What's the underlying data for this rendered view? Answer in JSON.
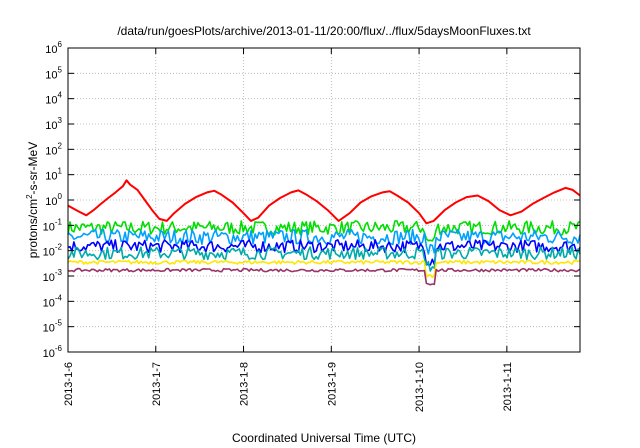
{
  "chart_data": {
    "type": "line",
    "title": "/data/run/goesPlots/archive/2013-01-11/20:00/flux/../flux/5daysMoonFluxes.txt",
    "xlabel": "Coordinated Universal Time (UTC)",
    "ylabel": {
      "base": "protons/cm",
      "sup": "2",
      "rest": "-s-sr-MeV"
    },
    "y_scale": "log",
    "ylim": [
      1e-06,
      1000000.0
    ],
    "y_ticks": [
      {
        "value": 1e-06,
        "base": "10",
        "exp": "-6"
      },
      {
        "value": 1e-05,
        "base": "10",
        "exp": "-5"
      },
      {
        "value": 0.0001,
        "base": "10",
        "exp": "-4"
      },
      {
        "value": 0.001,
        "base": "10",
        "exp": "-3"
      },
      {
        "value": 0.01,
        "base": "10",
        "exp": "-2"
      },
      {
        "value": 0.1,
        "base": "10",
        "exp": "-1"
      },
      {
        "value": 1.0,
        "base": "10",
        "exp": "0"
      },
      {
        "value": 10.0,
        "base": "10",
        "exp": "1"
      },
      {
        "value": 100.0,
        "base": "10",
        "exp": "2"
      },
      {
        "value": 1000.0,
        "base": "10",
        "exp": "3"
      },
      {
        "value": 10000.0,
        "base": "10",
        "exp": "4"
      },
      {
        "value": 100000.0,
        "base": "10",
        "exp": "5"
      },
      {
        "value": 1000000.0,
        "base": "10",
        "exp": "6"
      }
    ],
    "xlim": [
      "2013-01-06T00:00",
      "2013-01-11T20:00"
    ],
    "x_ticks": [
      "2013-1-6",
      "2013-1-7",
      "2013-1-8",
      "2013-1-9",
      "2013-1-10",
      "2013-1-11"
    ],
    "grid": true,
    "legend": "none",
    "series": [
      {
        "color": "#ff0000",
        "points": [
          [
            "2013-01-06T00:00",
            0.6
          ],
          [
            "2013-01-06T03:00",
            0.35
          ],
          [
            "2013-01-06T05:00",
            0.25
          ],
          [
            "2013-01-06T07:00",
            0.4
          ],
          [
            "2013-01-06T09:00",
            0.7
          ],
          [
            "2013-01-06T11:00",
            1.2
          ],
          [
            "2013-01-06T13:00",
            2.0
          ],
          [
            "2013-01-06T15:00",
            3.5
          ],
          [
            "2013-01-06T16:00",
            6.0
          ],
          [
            "2013-01-06T17:00",
            4.0
          ],
          [
            "2013-01-06T19:00",
            2.5
          ],
          [
            "2013-01-06T21:00",
            1.0
          ],
          [
            "2013-01-06T23:00",
            0.4
          ],
          [
            "2013-01-07T01:00",
            0.18
          ],
          [
            "2013-01-07T03:00",
            0.15
          ],
          [
            "2013-01-07T05:00",
            0.3
          ],
          [
            "2013-01-07T08:00",
            0.7
          ],
          [
            "2013-01-07T11:00",
            1.3
          ],
          [
            "2013-01-07T14:00",
            2.0
          ],
          [
            "2013-01-07T16:00",
            2.3
          ],
          [
            "2013-01-07T18:00",
            1.6
          ],
          [
            "2013-01-07T21:00",
            0.8
          ],
          [
            "2013-01-08T00:00",
            0.3
          ],
          [
            "2013-01-08T02:00",
            0.15
          ],
          [
            "2013-01-08T04:00",
            0.2
          ],
          [
            "2013-01-08T07:00",
            0.6
          ],
          [
            "2013-01-08T10:00",
            1.2
          ],
          [
            "2013-01-08T13:00",
            2.0
          ],
          [
            "2013-01-08T15:00",
            2.4
          ],
          [
            "2013-01-08T17:00",
            1.7
          ],
          [
            "2013-01-08T20:00",
            0.9
          ],
          [
            "2013-01-08T23:00",
            0.4
          ],
          [
            "2013-01-09T02:00",
            0.15
          ],
          [
            "2013-01-09T05:00",
            0.3
          ],
          [
            "2013-01-09T08:00",
            0.8
          ],
          [
            "2013-01-09T11:00",
            1.4
          ],
          [
            "2013-01-09T14:00",
            2.0
          ],
          [
            "2013-01-09T16:00",
            2.2
          ],
          [
            "2013-01-09T18:00",
            1.5
          ],
          [
            "2013-01-09T21:00",
            0.8
          ],
          [
            "2013-01-10T00:00",
            0.3
          ],
          [
            "2013-01-10T02:00",
            0.12
          ],
          [
            "2013-01-10T04:00",
            0.15
          ],
          [
            "2013-01-10T07:00",
            0.4
          ],
          [
            "2013-01-10T10:00",
            0.8
          ],
          [
            "2013-01-10T13:00",
            1.3
          ],
          [
            "2013-01-10T16:00",
            1.5
          ],
          [
            "2013-01-10T19:00",
            0.9
          ],
          [
            "2013-01-10T22:00",
            0.4
          ],
          [
            "2013-01-11T01:00",
            0.25
          ],
          [
            "2013-01-11T04:00",
            0.35
          ],
          [
            "2013-01-11T07:00",
            0.7
          ],
          [
            "2013-01-11T10:00",
            1.2
          ],
          [
            "2013-01-11T13:00",
            2.0
          ],
          [
            "2013-01-11T16:00",
            3.0
          ],
          [
            "2013-01-11T18:00",
            2.5
          ],
          [
            "2013-01-11T20:00",
            1.5
          ]
        ]
      },
      {
        "color": "#00dd00",
        "level": 0.08,
        "spread": 0.55
      },
      {
        "color": "#00a0ff",
        "level": 0.035,
        "spread": 0.6
      },
      {
        "color": "#0000ff",
        "level": 0.015,
        "spread": 0.5
      },
      {
        "color": "#00aaaa",
        "level": 0.008,
        "spread": 0.5
      },
      {
        "color": "#ffe600",
        "level": 0.0035,
        "spread": 0.15
      },
      {
        "color": "#993366",
        "level": 0.0017,
        "spread": 0.12
      }
    ]
  }
}
